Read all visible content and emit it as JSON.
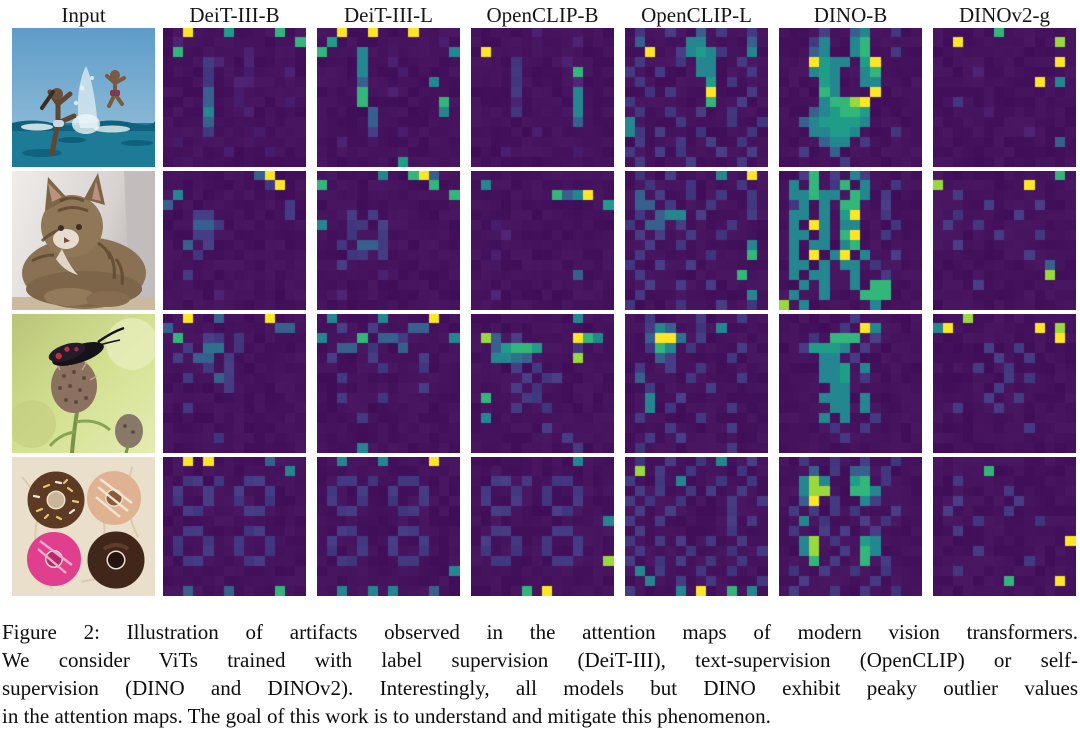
{
  "columns": [
    "Input",
    "DeiT-III-B",
    "DeiT-III-L",
    "OpenCLIP-B",
    "OpenCLIP-L",
    "DINO-B",
    "DINOv2-g"
  ],
  "caption": {
    "label": "Figure 2:",
    "lines": [
      "Figure 2: Illustration of artifacts observed in the attention maps of modern vision transformers.",
      "We consider ViTs trained with label supervision (DeiT-III), text-supervision (OpenCLIP) or self-",
      "supervision (DINO and DINOv2). Interestingly, all models but DINO exhibit peaky outlier values",
      "in the attention maps. The goal of this work is to understand and mitigate this phenomenon."
    ]
  },
  "grid_size": 14,
  "palette": {
    ".": "#45125e",
    "1": "#4a2170",
    "2": "#443a82",
    "3": "#38608e",
    "4": "#2d718e",
    "5": "#24868e",
    "6": "#1f9d89",
    "7": "#32b679",
    "8": "#9ad93c",
    "9": "#fde725"
  },
  "rows": [
    {
      "input": "beach",
      "input_alt": "Photo: two children splashing and jumping in the sea",
      "maps": [
        [
          "..9...6....7..",
          ".1...........7",
          ".7......1.....",
          "....21..1.....",
          "....2...1...1.",
          "....2..11.....",
          "....3..1......",
          "....3..1....1.",
          "....5...1.....",
          "....3.........",
          "....2....1....",
          ".1............",
          "......1...1...",
          ".............."
        ],
        [
          "..9..9...9....",
          ".6..........1.",
          "7...5........5",
          "....5..1......",
          "....5...1.....",
          "....3......5..",
          "....7..1......",
          "....7.......7.",
          ".....3......5.",
          ".....3........",
          ".....2..1.....",
          "..1...........",
          "..............",
          "........6....."
        ],
        [
          "......1.......",
          "..........1...",
          ".9............",
          "....2....1....",
          "....2.....7...",
          "....2.....1...",
          "....2.....5...",
          "....1.....5...",
          "....2.....5...",
          "..........3...",
          "......1.......",
          "..............",
          "...1......1...",
          ".............."
        ],
        [
          ".2..2..3.2..2.",
          ".3....55....3.",
          "..9..25652..5.",
          ".2...2.55..2..",
          "2..2...55...2.",
          ".2......6.2...",
          "..2.2...9...2.",
          "2.......7..2..",
          ".2..2..2..2...",
          "5....2....2..2",
          "52.2...2....2.",
          ".2...2..2..2..",
          "2..2.2...2..2.",
          ".2....2....2.."
        ],
        [
          "....2..35..2..",
          "...25..57.....",
          "...35..57..2..",
          "...9655.69....",
          "...565..57....",
          "....65..55....",
          "....75...9....",
          "....57789.....",
          "...356776.....",
          "..3566665.....",
          "...55665...2..",
          "....355.2.....",
          "..2..3........",
          "......2......."
        ],
        [
          "......7.......",
          "..9.........8.",
          "..............",
          "............9.",
          "....1.........",
          "..........9.5.",
          "..............",
          "..2...........",
          ".....1........",
          "..............",
          ".........1....",
          "............3.",
          "..............",
          ".............."
        ]
      ]
    },
    {
      "input": "cat",
      "input_alt": "Photo: tabby cat crouching against a white wall",
      "maps": [
        [
          ".........39...",
          "..........29..",
          ".5............",
          "3...........2.",
          "...22.......2.",
          "...332........",
          "...22.........",
          "..3.2.........",
          "...2..........",
          "..............",
          "..2...........",
          "..............",
          ".....1........",
          ".............."
        ],
        [
          "......5..793..",
          "7..........7..",
          ".............7",
          "..............",
          "...2.2........",
          "5..22.2.......",
          "...2..2.......",
          "..2.332.......",
          "...22.2.......",
          "..2...........",
          "......1.......",
          "..............",
          "..1...........",
          ".............."
        ],
        [
          "..............",
          ".5............",
          "........7359..",
          ".............6",
          "..............",
          "..1...........",
          "...1..........",
          "..............",
          "..1...........",
          "..............",
          "..........3...",
          "..............",
          "..1...........",
          ".............."
        ],
        [
          ".2..2....5..9.",
          "..2...2....2..",
          ".3.2..2..2..2.",
          ".33.2...2...2.",
          ".2.355.2....2.",
          "2.33.2....2...",
          ".2.2..2..2....",
          "..2..2......5.",
          ".2......2...7.",
          "2..2..2.......",
          ".2.........7..",
          "..2..2..2.....",
          ".2..........5.",
          "2....2...2..2."
        ],
        [
          "..27.2.52.....",
          ".5.7.27.5..2..",
          ".55755.75.2...",
          ".25.5.77..2...",
          ".55.5.69..2...",
          ".5.95.55...2..",
          ".55.5.79..2...",
          ".5.55.57......",
          ".5.9.59.5..2..",
          ".55.5.55.2....",
          ".5.55..5..2...",
          "..5.5..5.77...",
          ".5..5...777...",
          "8.5......5...."
        ],
        [
          "............7.",
          "8........9....",
          "..2...........",
          ".....2....2...",
          "..2.....2.....",
          ".2..2.........",
          "......2...2...",
          "..2...........",
          ".........2....",
          "...........3..",
          "...........8..",
          "....2.........",
          "..............",
          ".............."
        ]
      ]
    },
    {
      "input": "insect",
      "input_alt": "Photo: black moth with red spots on a thistle bud",
      "maps": [
        [
          "..9..3....9...",
          "3..........33.",
          ".7..22.2......",
          "..2.44.2......",
          ".2.33.2.......",
          "....2.2.......",
          "..2..32.......",
          "......2.......",
          "..............",
          "..2...........",
          "..............",
          "..............",
          ".....2........",
          ".............."
        ],
        [
          ".5....5....9..",
          "..2..2...33...",
          "5...7.332....5",
          "..33.2..3.....",
          ".2...2....2...",
          "......2...2...",
          "..2...........",
          "..........2...",
          "..2...2.......",
          "..............",
          "....2.........",
          "..............",
          "..............",
          "....5........."
        ],
        [
          "..........5...",
          "..............",
          ".83.2.....975.",
          "..36776...2...",
          "..5543....8...",
          "....2.2.......",
          ".....2.22.....",
          "....2.2.......",
          ".7...22.......",
          "....2..2......",
          ".5............",
          ".......2......",
          ".........2....",
          "..........2..."
        ],
        [
          "..2....2...2..",
          "..253..2.5....",
          "..3994.2......",
          "..275.2....2..",
          "...32.....2...",
          ".2..2..2......",
          ".3....2....2..",
          "..2.....2.....",
          "..5..2........",
          "..5.2.....2...",
          ".2.....2......",
          "....2.....2...",
          "..2..2........",
          ".2........2..."
        ],
        [
          ".......2......",
          "......2.95....",
          "...2.777.2....",
          "..26665.2.....",
          "....55.2......",
          "....556.5.....",
          "....556.2.....",
          ".....55.......",
          "....555.5.....",
          ".....55.5.....",
          "....5.5..2....",
          ".....2..2.....",
          "......2.......",
          ".............."
        ],
        [
          "...8..........",
          "59........9.8.",
          "............9.",
          ".....2..2.....",
          "......2..2....",
          "....2..2......",
          ".......2.2....",
          "......2.......",
          ".....2..2.....",
          "..2...2.......",
          "..............",
          ".........2....",
          "..............",
          ".............."
        ]
      ]
    },
    {
      "input": "donuts",
      "input_alt": "Photo: four glazed donuts on a marble surface",
      "maps": [
        [
          "..9.9.....3...",
          "............5.",
          "..22.2..22....",
          ".2..2..2..2...",
          ".2..2..2..2...",
          "..22....22....",
          "..............",
          "..22....22....",
          ".2..2..2..2...",
          ".2..2..2..2...",
          "..22....22....",
          "..............",
          "..............",
          "..3...3....7.."
        ],
        [
          "..5...5....9..",
          "..............",
          "..22.2..22....",
          ".2..2..2..2...",
          ".2..2..2..2...",
          "..22....22....",
          "..............",
          "..22....22....",
          ".2..2..2..2...",
          ".2..2..2..2...",
          "..22....22....",
          ".............5",
          "..............",
          "..5..5.5...3.."
        ],
        [
          "..........5...",
          "..............",
          "..22.2..22....",
          ".2..2..2..2...",
          ".2..2..2..2...",
          "..22....22....",
          ".............5",
          "..22....22....",
          ".2..2..2..2...",
          ".2..2..2..2...",
          "..22....22...8",
          "..............",
          "..............",
          ".....7.9......"
        ],
        [
          ".2..2..2.5..2.",
          ".8.2..2....2..",
          "2..2.5...2..2.",
          ".2.2..2.2..2..",
          "2.2..2....2..2",
          ".2..2.....2...",
          "2..2......2.2.",
          ".2........2...",
          "2..2.2..2..2..",
          ".2....2...2..2",
          "2..2.2..2..2..",
          ".5.2...2..2...",
          "..5..2..2....2",
          "2....5.9..7.5."
        ],
        [
          "..2..2..2..2..",
          "...3.2.33.2...",
          "..585..67.2...",
          "..588..775....",
          "..39.2..52....",
          ".2.2.2.2...2..",
          "..5.2...2.2...",
          ".2..2.2..2....",
          "..58.2..65....",
          "..58..2.75....",
          "...7.2..7.2...",
          ".2..2..2..2...",
          "..2......2....",
          ".2...2..2..2.."
        ],
        [
          "..............",
          ".....7........",
          "..2...........",
          ".......2......",
          "..2.....2.....",
          ".2.....2......",
          "....2.....2...",
          "..2...........",
          ".............9",
          "....2.........",
          ".........2....",
          "..2...........",
          ".......7....9.",
          ".............."
        ]
      ]
    }
  ]
}
